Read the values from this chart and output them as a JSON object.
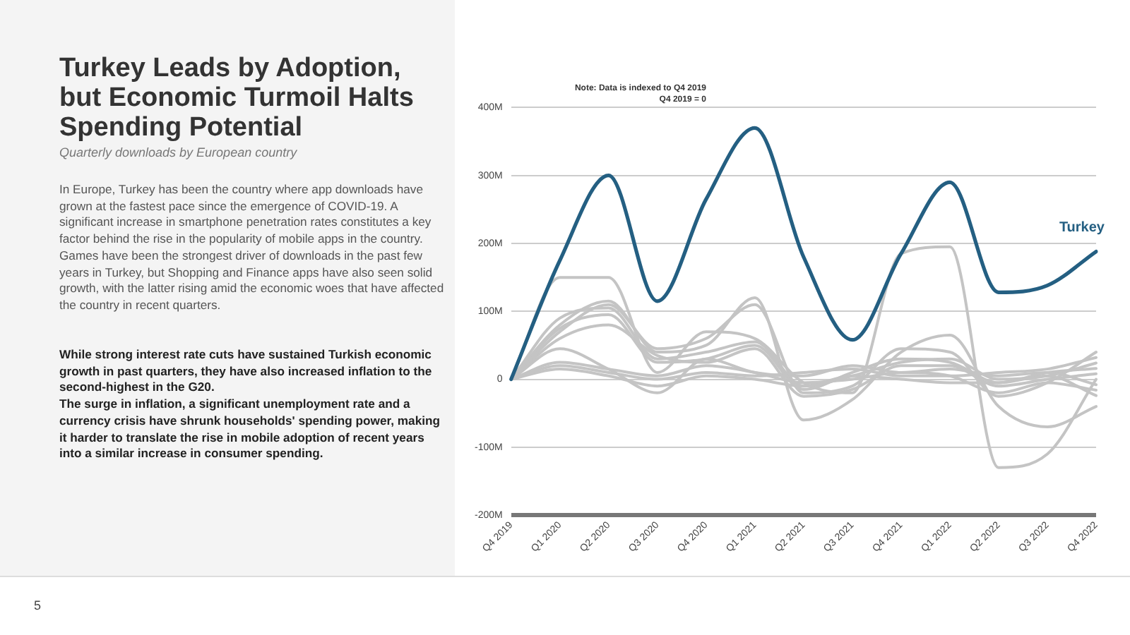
{
  "chart_data": {
    "type": "line",
    "title": "Turkey Leads by Adoption, but Economic Turmoil Halts Spending Potential",
    "subtitle": "Quarterly downloads by European country",
    "annotations": [
      "Note: Data is indexed to Q4 2019\nQ4 2019 = 0",
      "In Europe, Turkey has been the country where app downloads have grown at the fastest pace since the emergence of COVID-19. A significant increase in smartphone penetration rates constitutes a key factor behind the rise in the popularity of mobile apps in the country. Games have been the strongest driver of downloads in the past few years in Turkey, but Shopping and Finance apps have also seen solid growth, with the latter rising amid the economic woes that have affected the country in recent quarters.",
      "While strong interest rate cuts have sustained Turkish economic growth in past quarters, they have also increased inflation to the second-highest in the G20.",
      "The surge in inflation, a significant unemployment rate and a currency crisis have shrunk households' spending power, making it harder to translate the rise in mobile adoption of recent years into a similar increase in consumer spending.",
      "5"
    ],
    "categories": [
      "Q4 2019",
      "Q1 2020",
      "Q2 2020",
      "Q3 2020",
      "Q4 2020",
      "Q1 2021",
      "Q2 2021",
      "Q3 2021",
      "Q4 2021",
      "Q1 2022",
      "Q2 2022",
      "Q3 2022",
      "Q4 2022"
    ],
    "ylim": [
      -200,
      400
    ],
    "yticks": [
      {
        "value": -200,
        "label": "-200M"
      },
      {
        "value": -100,
        "label": "-100M"
      },
      {
        "value": 0,
        "label": "0"
      },
      {
        "value": 100,
        "label": "100M"
      },
      {
        "value": 200,
        "label": "200M"
      },
      {
        "value": 300,
        "label": "300M"
      },
      {
        "value": 400,
        "label": "400M"
      }
    ],
    "grid": "y",
    "legend": false,
    "marker": "none",
    "line_style": "solid",
    "series": [
      {
        "color": "#c4c4c4",
        "values": [
          0,
          150,
          150,
          10,
          70,
          60,
          -5,
          -20,
          185,
          195,
          -130,
          -110,
          0
        ]
      },
      {
        "color": "#c4c4c4",
        "values": [
          0,
          80,
          115,
          40,
          50,
          120,
          -60,
          -30,
          40,
          65,
          -40,
          -70,
          -40
        ]
      },
      {
        "color": "#c4c4c4",
        "values": [
          0,
          70,
          110,
          45,
          60,
          110,
          -20,
          -10,
          45,
          40,
          -25,
          -5,
          40
        ]
      },
      {
        "color": "#c4c4c4",
        "values": [
          0,
          90,
          105,
          30,
          40,
          55,
          -10,
          5,
          25,
          30,
          0,
          5,
          24
        ]
      },
      {
        "color": "#c4c4c4",
        "values": [
          0,
          75,
          95,
          25,
          30,
          50,
          -15,
          10,
          30,
          25,
          -5,
          10,
          16
        ]
      },
      {
        "color": "#c4c4c4",
        "values": [
          0,
          60,
          80,
          35,
          25,
          45,
          -25,
          -15,
          20,
          20,
          -10,
          0,
          8
        ]
      },
      {
        "color": "#c4c4c4",
        "values": [
          0,
          45,
          15,
          -20,
          30,
          10,
          5,
          20,
          10,
          15,
          5,
          10,
          -8
        ]
      },
      {
        "color": "#c4c4c4",
        "values": [
          0,
          25,
          15,
          5,
          20,
          10,
          -5,
          0,
          10,
          5,
          -20,
          -5,
          -16
        ]
      },
      {
        "color": "#c4c4c4",
        "values": [
          0,
          20,
          10,
          0,
          10,
          5,
          10,
          15,
          5,
          5,
          10,
          15,
          32
        ]
      },
      {
        "color": "#c4c4c4",
        "values": [
          0,
          15,
          5,
          -10,
          5,
          0,
          -10,
          5,
          0,
          -5,
          -5,
          5,
          -24
        ]
      },
      {
        "name": "Turkey",
        "color": "#245f82",
        "values": [
          0,
          175,
          300,
          115,
          265,
          370,
          180,
          58,
          185,
          290,
          128,
          138,
          188
        ]
      }
    ]
  }
}
